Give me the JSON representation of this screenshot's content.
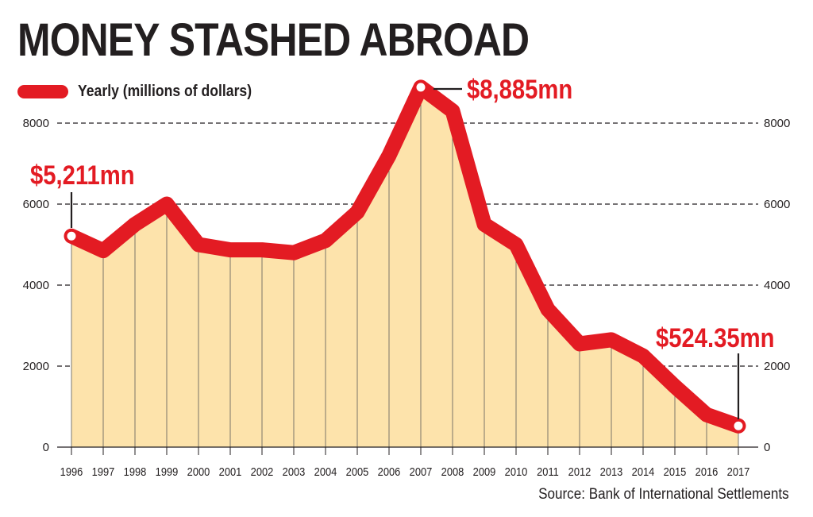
{
  "title": "MONEY STASHED ABROAD",
  "source": "Source: Bank of International Settlements",
  "colors": {
    "line": "#e31b23",
    "area": "#fde3ab",
    "text": "#231f20"
  },
  "chart_data": {
    "type": "area",
    "title": "MONEY STASHED ABROAD",
    "xlabel": "",
    "ylabel": "",
    "ylim": [
      0,
      8000
    ],
    "y_ticks": [
      0,
      2000,
      4000,
      6000,
      8000
    ],
    "y_tick_labels": [
      "0",
      "2000",
      "4000",
      "6000",
      "8000"
    ],
    "grid": "dashed horizontal",
    "legend": {
      "position": "top-left",
      "label": "Yearly (millions of dollars)"
    },
    "categories": [
      "1996",
      "1997",
      "1998",
      "1999",
      "2000",
      "2001",
      "2002",
      "2003",
      "2004",
      "2005",
      "2006",
      "2007",
      "2008",
      "2009",
      "2010",
      "2011",
      "2012",
      "2013",
      "2014",
      "2015",
      "2016",
      "2017"
    ],
    "series": [
      {
        "name": "Yearly (millions of dollars)",
        "values": [
          5211,
          4850,
          5500,
          6000,
          5000,
          4870,
          4870,
          4800,
          5100,
          5800,
          7200,
          8885,
          8300,
          5500,
          5000,
          3400,
          2550,
          2650,
          2250,
          1500,
          800,
          524.35
        ]
      }
    ],
    "annotations": [
      {
        "text": "$5,211mn",
        "category": "1996",
        "value": 5211
      },
      {
        "text": "$8,885mn",
        "category": "2007",
        "value": 8885
      },
      {
        "text": "$524.35mn",
        "category": "2017",
        "value": 524.35
      }
    ]
  }
}
